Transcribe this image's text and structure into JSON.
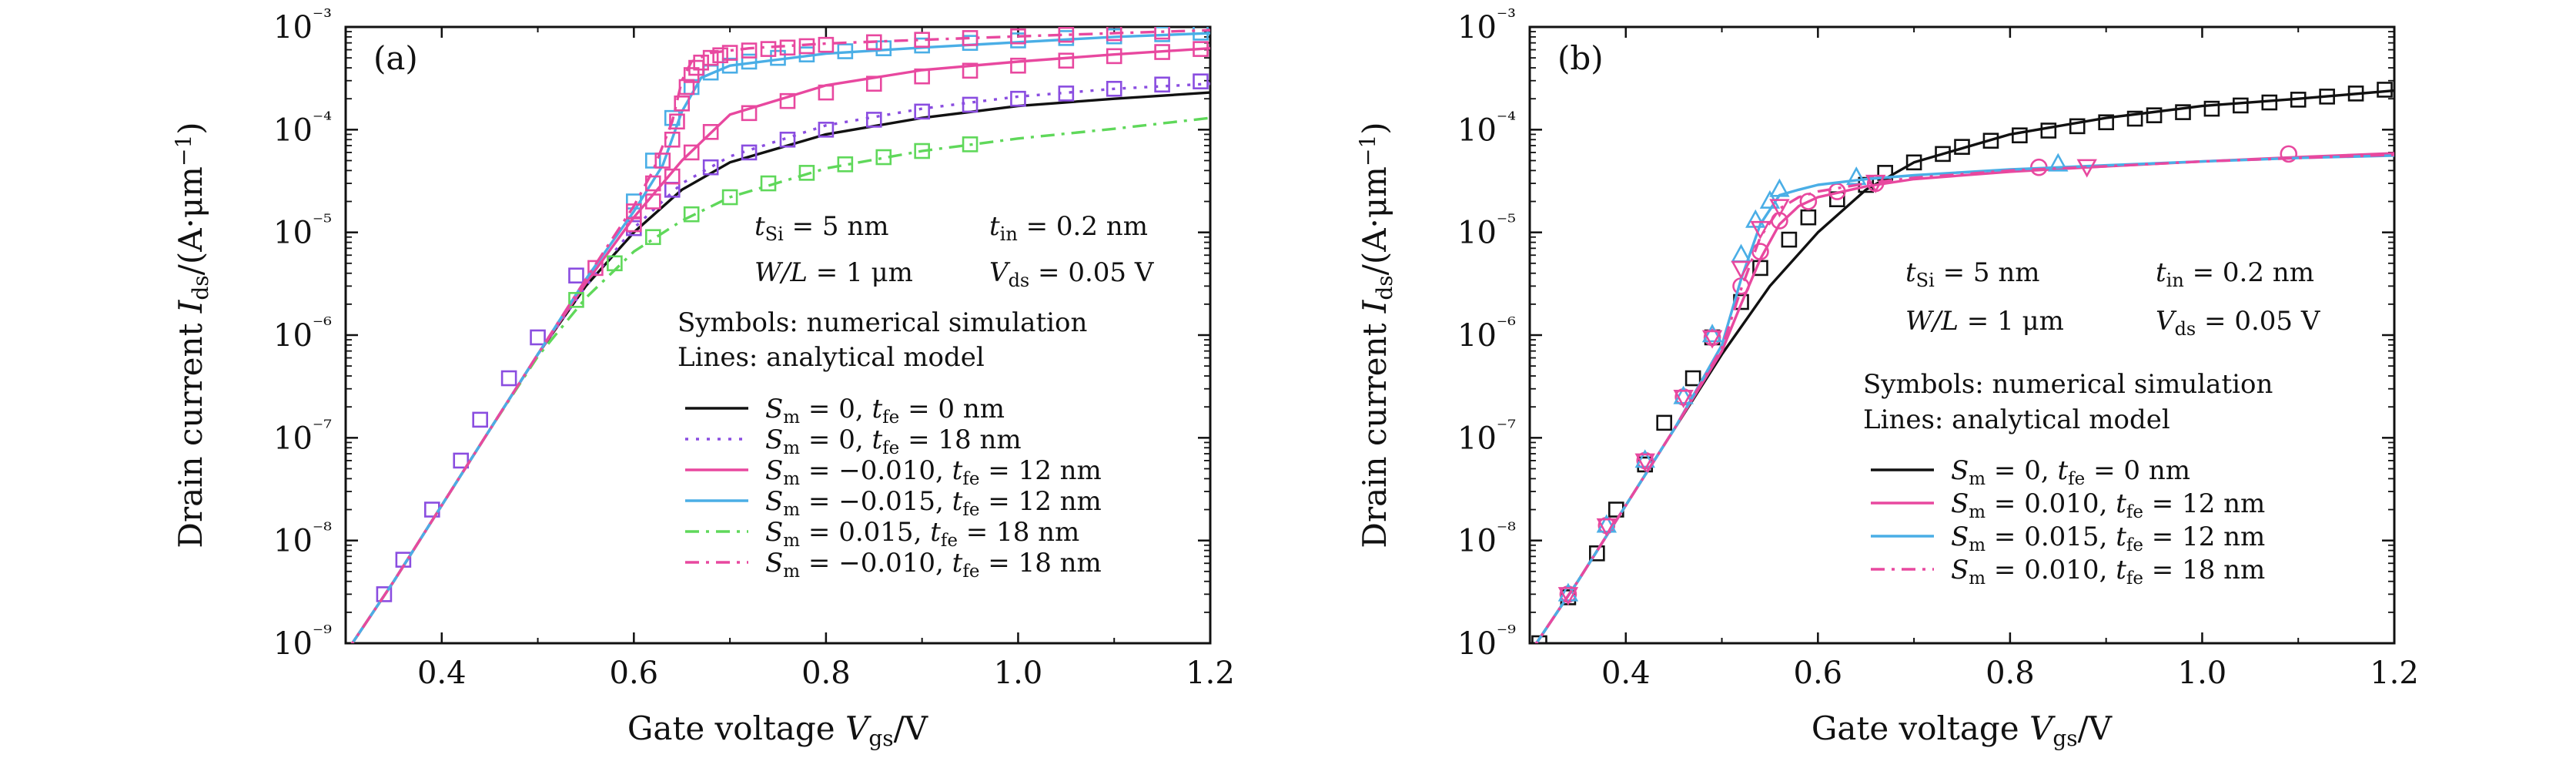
{
  "chart_data": [
    {
      "type": "line",
      "panel": "(a)",
      "xlabel": "Gate voltage V_gs/V",
      "ylabel": "Drain current I_ds/(A·μm⁻¹)",
      "xlim": [
        0.3,
        1.2
      ],
      "ylim": [
        1e-09,
        0.001
      ],
      "y_scale": "log",
      "x_ticks": [
        "0.4",
        "0.6",
        "0.8",
        "1.0",
        "1.2"
      ],
      "y_ticks": [
        "10⁻⁹",
        "10⁻⁸",
        "10⁻⁷",
        "10⁻⁶",
        "10⁻⁵",
        "10⁻⁴",
        "10⁻³"
      ],
      "annotations": [
        "t_Si = 5 nm",
        "t_in = 0.2 nm",
        "W/L = 1 μm",
        "V_ds = 0.05 V",
        "Symbols: numerical simulation",
        "Lines: analytical model"
      ],
      "legend_position": "lower-right",
      "series": [
        {
          "name": "S_m = 0, t_fe = 0 nm",
          "color": "#111111",
          "dash": "solid",
          "line": {
            "x": [
              0.3,
              0.35,
              0.4,
              0.45,
              0.5,
              0.55,
              0.6,
              0.65,
              0.7,
              0.8,
              0.9,
              1.0,
              1.1,
              1.2
            ],
            "y": [
              8e-10,
              4e-09,
              2.2e-08,
              1.2e-07,
              6.5e-07,
              3e-06,
              1e-05,
              2.6e-05,
              4.8e-05,
              9e-05,
              0.00013,
              0.00017,
              0.0002,
              0.00023
            ]
          },
          "markers": {
            "x": [],
            "y": []
          }
        },
        {
          "name": "S_m = 0, t_fe = 18 nm",
          "color": "#8a4de0",
          "dash": "dot",
          "line": {
            "x": [
              0.3,
              0.35,
              0.4,
              0.45,
              0.5,
              0.55,
              0.6,
              0.65,
              0.7,
              0.8,
              0.9,
              1.0,
              1.1,
              1.2
            ],
            "y": [
              8e-10,
              4e-09,
              2.2e-08,
              1.2e-07,
              6.5e-07,
              3e-06,
              1.1e-05,
              3e-05,
              5.5e-05,
              0.00011,
              0.00016,
              0.00021,
              0.00025,
              0.00028
            ]
          },
          "markers": {
            "x": [
              0.34,
              0.36,
              0.39,
              0.42,
              0.44,
              0.47,
              0.5,
              0.54,
              0.6,
              0.64,
              0.68,
              0.72,
              0.76,
              0.8,
              0.85,
              0.9,
              0.95,
              1.0,
              1.05,
              1.1,
              1.15,
              1.19
            ],
            "y": [
              3e-09,
              6.5e-09,
              2e-08,
              6e-08,
              1.5e-07,
              3.8e-07,
              9.5e-07,
              3.8e-06,
              1.1e-05,
              2.6e-05,
              4.3e-05,
              6e-05,
              8e-05,
              0.0001,
              0.000125,
              0.00015,
              0.000175,
              0.0002,
              0.000225,
              0.00025,
              0.000275,
              0.000295
            ]
          }
        },
        {
          "name": "S_m = −0.010, t_fe = 12 nm",
          "color": "#e8489f",
          "dash": "solid",
          "line": {
            "x": [
              0.3,
              0.35,
              0.4,
              0.45,
              0.5,
              0.55,
              0.6,
              0.65,
              0.7,
              0.8,
              0.9,
              1.0,
              1.1,
              1.2
            ],
            "y": [
              8e-10,
              4e-09,
              2.2e-08,
              1.2e-07,
              6.5e-07,
              3.2e-06,
              1.4e-05,
              5e-05,
              0.00014,
              0.00027,
              0.00038,
              0.00046,
              0.00054,
              0.00062
            ]
          },
          "markers": {
            "x": [
              0.56,
              0.6,
              0.62,
              0.64,
              0.66,
              0.68,
              0.72,
              0.76,
              0.8,
              0.85,
              0.9,
              0.95,
              1.0,
              1.05,
              1.1,
              1.15,
              1.19
            ],
            "y": [
              4.5e-06,
              1.2e-05,
              2e-05,
              3.5e-05,
              6e-05,
              9.5e-05,
              0.000145,
              0.00019,
              0.00023,
              0.00028,
              0.00033,
              0.000375,
              0.00042,
              0.00047,
              0.00052,
              0.00057,
              0.00061
            ]
          }
        },
        {
          "name": "S_m = −0.015, t_fe = 12 nm",
          "color": "#4aaee6",
          "dash": "solid",
          "line": {
            "x": [
              0.3,
              0.35,
              0.4,
              0.45,
              0.5,
              0.55,
              0.6,
              0.63,
              0.65,
              0.67,
              0.7,
              0.8,
              0.9,
              1.0,
              1.1,
              1.2
            ],
            "y": [
              8e-10,
              4e-09,
              2.2e-08,
              1.2e-07,
              6.5e-07,
              3.5e-06,
              1.6e-05,
              4.5e-05,
              0.00015,
              0.00032,
              0.00042,
              0.00055,
              0.00063,
              0.00071,
              0.0008,
              0.00087
            ]
          },
          "markers": {
            "x": [
              0.6,
              0.62,
              0.64,
              0.66,
              0.68,
              0.7,
              0.72,
              0.75,
              0.78,
              0.82,
              0.86,
              0.9,
              0.95,
              1.0,
              1.05,
              1.1,
              1.15,
              1.19
            ],
            "y": [
              2e-05,
              5e-05,
              0.00013,
              0.00026,
              0.00036,
              0.00042,
              0.00046,
              0.0005,
              0.00054,
              0.00058,
              0.00062,
              0.00066,
              0.0007,
              0.00074,
              0.00078,
              0.00081,
              0.00085,
              0.00088
            ]
          }
        },
        {
          "name": "S_m = 0.015, t_fe = 18 nm",
          "color": "#5fd85a",
          "dash": "dashdot",
          "line": {
            "x": [
              0.3,
              0.35,
              0.4,
              0.45,
              0.5,
              0.55,
              0.6,
              0.65,
              0.7,
              0.8,
              0.9,
              1.0,
              1.1,
              1.2
            ],
            "y": [
              8e-10,
              4e-09,
              2.2e-08,
              1.2e-07,
              6.2e-07,
              2.3e-06,
              6.5e-06,
              1.3e-05,
              2.2e-05,
              4.2e-05,
              6.2e-05,
              8.2e-05,
              0.000102,
              0.00013
            ]
          },
          "markers": {
            "x": [
              0.54,
              0.58,
              0.62,
              0.66,
              0.7,
              0.74,
              0.78,
              0.82,
              0.86,
              0.9,
              0.95
            ],
            "y": [
              2.2e-06,
              5e-06,
              9e-06,
              1.5e-05,
              2.2e-05,
              3e-05,
              3.8e-05,
              4.6e-05,
              5.4e-05,
              6.2e-05,
              7.2e-05
            ]
          }
        },
        {
          "name": "S_m = −0.010, t_fe = 18 nm",
          "color": "#e8489f",
          "dash": "dashdot",
          "line": {
            "x": [
              0.3,
              0.35,
              0.4,
              0.45,
              0.5,
              0.55,
              0.6,
              0.62,
              0.64,
              0.65,
              0.66,
              0.68,
              0.72,
              0.8,
              0.9,
              1.0,
              1.1,
              1.2
            ],
            "y": [
              8e-10,
              4e-09,
              2.2e-08,
              1.2e-07,
              6.5e-07,
              3.5e-06,
              1.8e-05,
              4e-05,
              0.00012,
              0.0003,
              0.00046,
              0.00056,
              0.00062,
              0.00069,
              0.00075,
              0.00081,
              0.00087,
              0.00093
            ]
          },
          "markers": {
            "x": [
              0.6,
              0.62,
              0.63,
              0.64,
              0.645,
              0.65,
              0.655,
              0.66,
              0.665,
              0.67,
              0.68,
              0.69,
              0.7,
              0.72,
              0.74,
              0.76,
              0.78,
              0.8,
              0.85,
              0.9,
              0.95,
              1.0,
              1.05,
              1.1,
              1.15
            ],
            "y": [
              1.6e-05,
              3e-05,
              5e-05,
              8e-05,
              0.00012,
              0.00018,
              0.00026,
              0.00034,
              0.0004,
              0.00045,
              0.0005,
              0.00053,
              0.00056,
              0.00059,
              0.00061,
              0.00063,
              0.00065,
              0.00067,
              0.00071,
              0.00075,
              0.00078,
              0.00081,
              0.00084,
              0.00087,
              0.0009
            ]
          }
        }
      ]
    },
    {
      "type": "line",
      "panel": "(b)",
      "xlabel": "Gate voltage V_gs/V",
      "ylabel": "Drain current I_ds/(A·μm⁻¹)",
      "xlim": [
        0.3,
        1.2
      ],
      "ylim": [
        1e-09,
        0.001
      ],
      "y_scale": "log",
      "x_ticks": [
        "0.4",
        "0.6",
        "0.8",
        "1.0",
        "1.2"
      ],
      "y_ticks": [
        "10⁻⁹",
        "10⁻⁸",
        "10⁻⁷",
        "10⁻⁶",
        "10⁻⁵",
        "10⁻⁴",
        "10⁻³"
      ],
      "annotations": [
        "t_Si = 5 nm",
        "t_in = 0.2 nm",
        "W/L = 1 μm",
        "V_ds = 0.05 V",
        "Symbols: numerical simulation",
        "Lines: analytical model"
      ],
      "legend_position": "lower-right",
      "series": [
        {
          "name": "S_m = 0, t_fe = 0 nm",
          "color": "#111111",
          "dash": "solid",
          "marker": "square",
          "line": {
            "x": [
              0.3,
              0.35,
              0.4,
              0.45,
              0.5,
              0.55,
              0.6,
              0.65,
              0.7,
              0.8,
              0.9,
              1.0,
              1.1,
              1.2
            ],
            "y": [
              8e-10,
              4e-09,
              2.2e-08,
              1.2e-07,
              6.5e-07,
              3e-06,
              1e-05,
              2.6e-05,
              4.8e-05,
              9e-05,
              0.00013,
              0.00017,
              0.0002,
              0.00024
            ]
          },
          "markers": {
            "x": [
              0.31,
              0.34,
              0.37,
              0.39,
              0.42,
              0.44,
              0.47,
              0.49,
              0.52,
              0.54,
              0.57,
              0.59,
              0.62,
              0.65,
              0.67,
              0.7,
              0.73,
              0.75,
              0.78,
              0.81,
              0.84,
              0.87,
              0.9,
              0.93,
              0.95,
              0.98,
              1.01,
              1.04,
              1.07,
              1.1,
              1.13,
              1.16,
              1.19
            ],
            "y": [
              1e-09,
              2.8e-09,
              7.5e-09,
              2e-08,
              5.5e-08,
              1.4e-07,
              3.8e-07,
              9.5e-07,
              2.1e-06,
              4.5e-06,
              8.5e-06,
              1.4e-05,
              2.1e-05,
              2.9e-05,
              3.8e-05,
              4.8e-05,
              5.8e-05,
              6.8e-05,
              7.8e-05,
              8.8e-05,
              9.8e-05,
              0.000108,
              0.000118,
              0.000128,
              0.000138,
              0.000148,
              0.00016,
              0.000172,
              0.000184,
              0.000196,
              0.00021,
              0.000225,
              0.000245
            ]
          }
        },
        {
          "name": "S_m = 0.010, t_fe = 12 nm",
          "color": "#e8489f",
          "dash": "solid",
          "marker": "circle",
          "line": {
            "x": [
              0.3,
              0.35,
              0.4,
              0.45,
              0.5,
              0.52,
              0.54,
              0.56,
              0.58,
              0.6,
              0.65,
              0.7,
              0.8,
              0.9,
              1.0,
              1.1,
              1.2
            ],
            "y": [
              8e-10,
              4e-09,
              2.2e-08,
              1.2e-07,
              7e-07,
              2e-06,
              5.5e-06,
              1.2e-05,
              1.8e-05,
              2.2e-05,
              2.8e-05,
              3.3e-05,
              3.9e-05,
              4.4e-05,
              4.9e-05,
              5.4e-05,
              5.9e-05
            ]
          },
          "markers": {
            "x": [
              0.34,
              0.38,
              0.42,
              0.46,
              0.49,
              0.52,
              0.54,
              0.56,
              0.59,
              0.62,
              0.66,
              0.83,
              1.09
            ],
            "y": [
              3e-09,
              1.4e-08,
              6e-08,
              2.5e-07,
              9.5e-07,
              3e-06,
              6.5e-06,
              1.3e-05,
              2e-05,
              2.5e-05,
              3e-05,
              4.3e-05,
              5.8e-05
            ]
          }
        },
        {
          "name": "S_m = 0.015, t_fe = 12 nm",
          "color": "#4aaee6",
          "dash": "solid",
          "marker": "triangle-up",
          "line": {
            "x": [
              0.3,
              0.35,
              0.4,
              0.45,
              0.5,
              0.52,
              0.54,
              0.56,
              0.58,
              0.6,
              0.65,
              0.7,
              0.8,
              0.9,
              1.0,
              1.1,
              1.2
            ],
            "y": [
              8e-10,
              4e-09,
              2.2e-08,
              1.2e-07,
              8e-07,
              3.5e-06,
              1.2e-05,
              2.3e-05,
              2.6e-05,
              2.9e-05,
              3.3e-05,
              3.6e-05,
              4.1e-05,
              4.5e-05,
              4.9e-05,
              5.3e-05,
              5.6e-05
            ]
          },
          "markers": {
            "x": [
              0.34,
              0.38,
              0.42,
              0.46,
              0.49,
              0.52,
              0.535,
              0.55,
              0.56,
              0.64,
              0.85
            ],
            "y": [
              3e-09,
              1.4e-08,
              6e-08,
              2.5e-07,
              1e-06,
              6e-06,
              1.3e-05,
              2e-05,
              2.6e-05,
              3.4e-05,
              4.6e-05
            ]
          }
        },
        {
          "name": "S_m = 0.010, t_fe = 18 nm",
          "color": "#e8489f",
          "dash": "dashdot",
          "marker": "triangle-down",
          "line": {
            "x": [
              0.3,
              0.35,
              0.4,
              0.45,
              0.5,
              0.52,
              0.54,
              0.56,
              0.58,
              0.6,
              0.65,
              0.7,
              0.8,
              0.9,
              1.0,
              1.1,
              1.2
            ],
            "y": [
              8e-10,
              4e-09,
              2.2e-08,
              1.2e-07,
              7.5e-07,
              2.8e-06,
              9e-06,
              1.7e-05,
              2.2e-05,
              2.5e-05,
              3e-05,
              3.4e-05,
              4e-05,
              4.4e-05,
              4.9e-05,
              5.3e-05,
              5.7e-05
            ]
          },
          "markers": {
            "x": [
              0.34,
              0.38,
              0.42,
              0.46,
              0.49,
              0.52,
              0.54,
              0.56,
              0.66,
              0.88
            ],
            "y": [
              3e-09,
              1.4e-08,
              6e-08,
              2.5e-07,
              9.5e-07,
              4.5e-06,
              1.1e-05,
              1.8e-05,
              3.1e-05,
              4.4e-05
            ]
          }
        }
      ]
    }
  ],
  "panel_a": {
    "label": "(a)",
    "ann_tsi": "t",
    "ann_tsi_sub": "Si",
    "ann_tsi_val": " = 5 nm",
    "ann_tin": "t",
    "ann_tin_sub": "in",
    "ann_tin_val": " = 0.2 nm",
    "ann_wl": "W/L",
    "ann_wl_val": " = 1 μm",
    "ann_vds": "V",
    "ann_vds_sub": "ds",
    "ann_vds_val": " = 0.05 V",
    "ann_symbols": "Symbols: numerical simulation",
    "ann_lines": "Lines: analytical model"
  },
  "panel_b": {
    "label": "(b)",
    "ann_tsi": "t",
    "ann_tsi_sub": "Si",
    "ann_tsi_val": " = 5 nm",
    "ann_tin": "t",
    "ann_tin_sub": "in",
    "ann_tin_val": " = 0.2 nm",
    "ann_wl": "W/L",
    "ann_wl_val": " = 1 μm",
    "ann_vds": "V",
    "ann_vds_sub": "ds",
    "ann_vds_val": " = 0.05 V",
    "ann_symbols": "Symbols: numerical simulation",
    "ann_lines": "Lines: analytical model"
  },
  "axis_text": {
    "xlabel_main": "Gate voltage ",
    "xlabel_var": "V",
    "xlabel_sub": "gs",
    "xlabel_unit": "/V",
    "ylabel_main": "Drain current ",
    "ylabel_var": "I",
    "ylabel_sub": "ds",
    "ylabel_unit": "/(A·μm",
    "ylabel_exp": "−1",
    "ylabel_close": ")",
    "y_base": "10"
  }
}
